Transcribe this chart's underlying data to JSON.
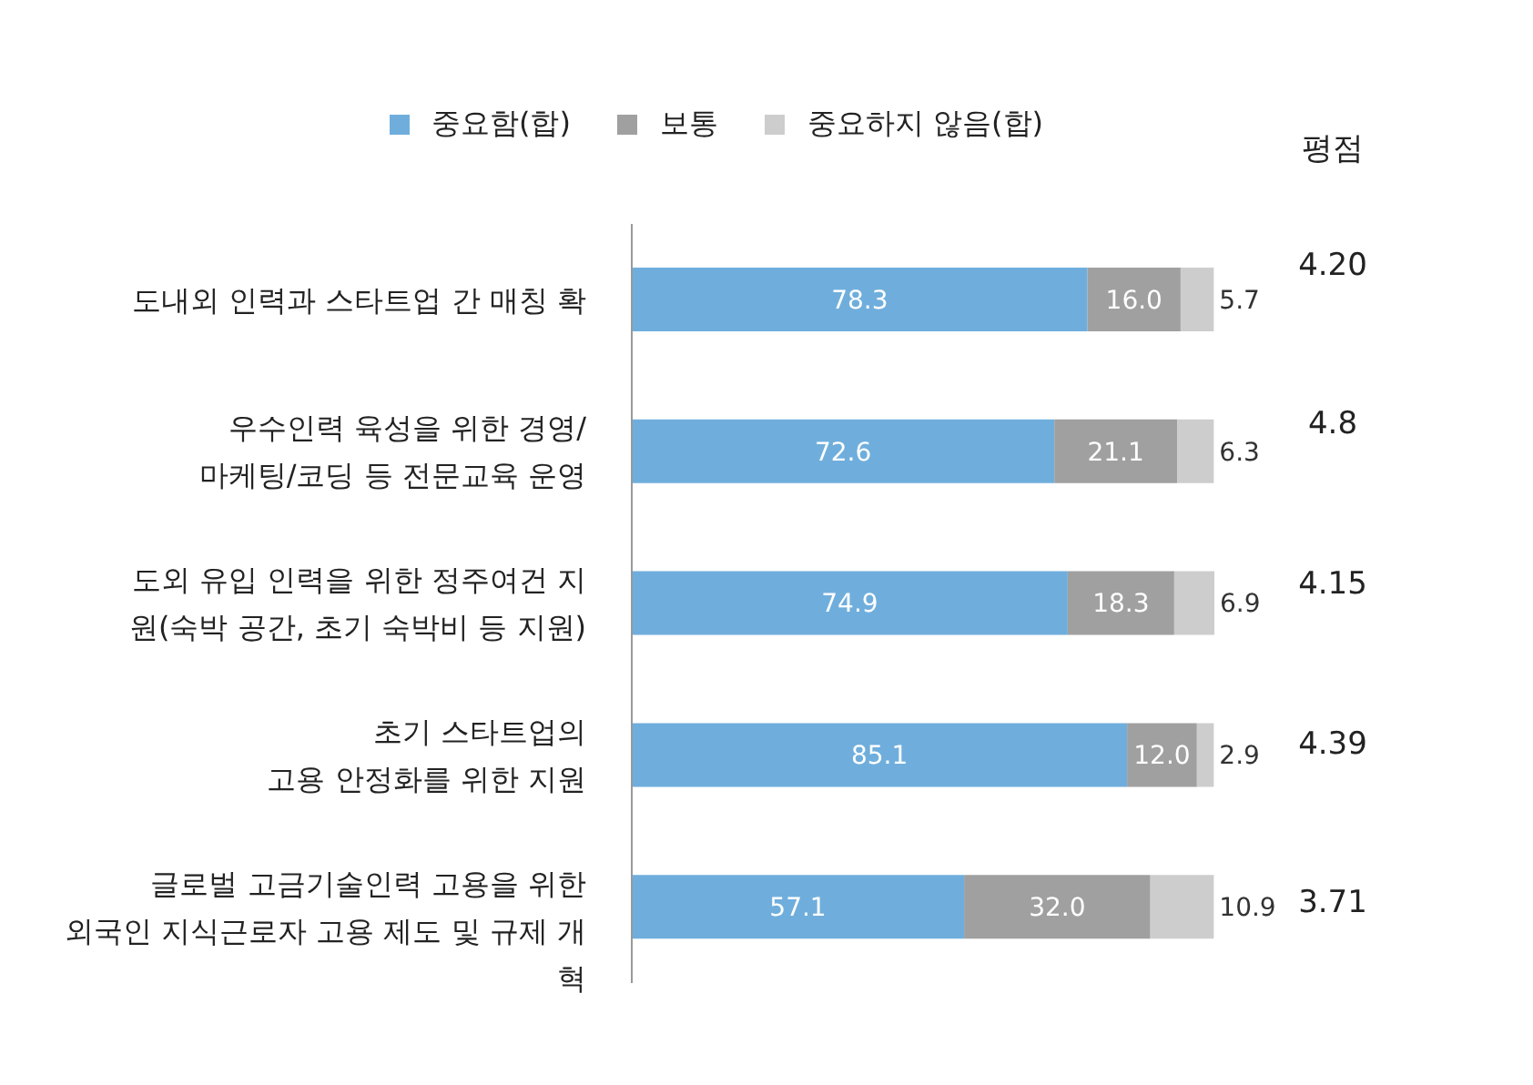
{
  "chart_data": {
    "type": "bar",
    "orientation": "horizontal",
    "stacked": true,
    "legend": "top",
    "categories": [
      "도내외 인력과 스타트업 간 매칭 확",
      "우수인력 육성을 위한 경영/\n마케팅/코딩 등 전문교육 운영",
      "도외 유입 인력을 위한 정주여건 지\n원(숙박 공간, 초기 숙박비 등 지원)",
      "초기 스타트업의\n고용 안정화를 위한 지원",
      "글로벌 고금기술인력 고용을 위한\n외국인 지식근로자 고용 제도 및 규제 개\n혁"
    ],
    "series": [
      {
        "name": "중요함(합)",
        "color": "#6faedc",
        "values": [
          78.3,
          72.6,
          74.9,
          85.1,
          57.1
        ],
        "value_labels": [
          "78.3",
          "72.6",
          "74.9",
          "85.1",
          "57.1"
        ]
      },
      {
        "name": "보통",
        "color": "#a0a0a0",
        "values": [
          16.0,
          21.1,
          18.3,
          12.0,
          32.0
        ],
        "value_labels": [
          "16.0",
          "21.1",
          "18.3",
          "12.0",
          "32.0"
        ]
      },
      {
        "name": "중요하지 않음(합)",
        "color": "#cdcdcd",
        "values": [
          5.7,
          6.3,
          6.9,
          2.9,
          10.9
        ],
        "value_labels": [
          "5.7",
          "6.3",
          "6.9",
          "2.9",
          "10.9"
        ]
      }
    ],
    "annotations": [
      "평점",
      "4.20",
      "4.8",
      "4.15",
      "4.39",
      "3.71"
    ]
  }
}
